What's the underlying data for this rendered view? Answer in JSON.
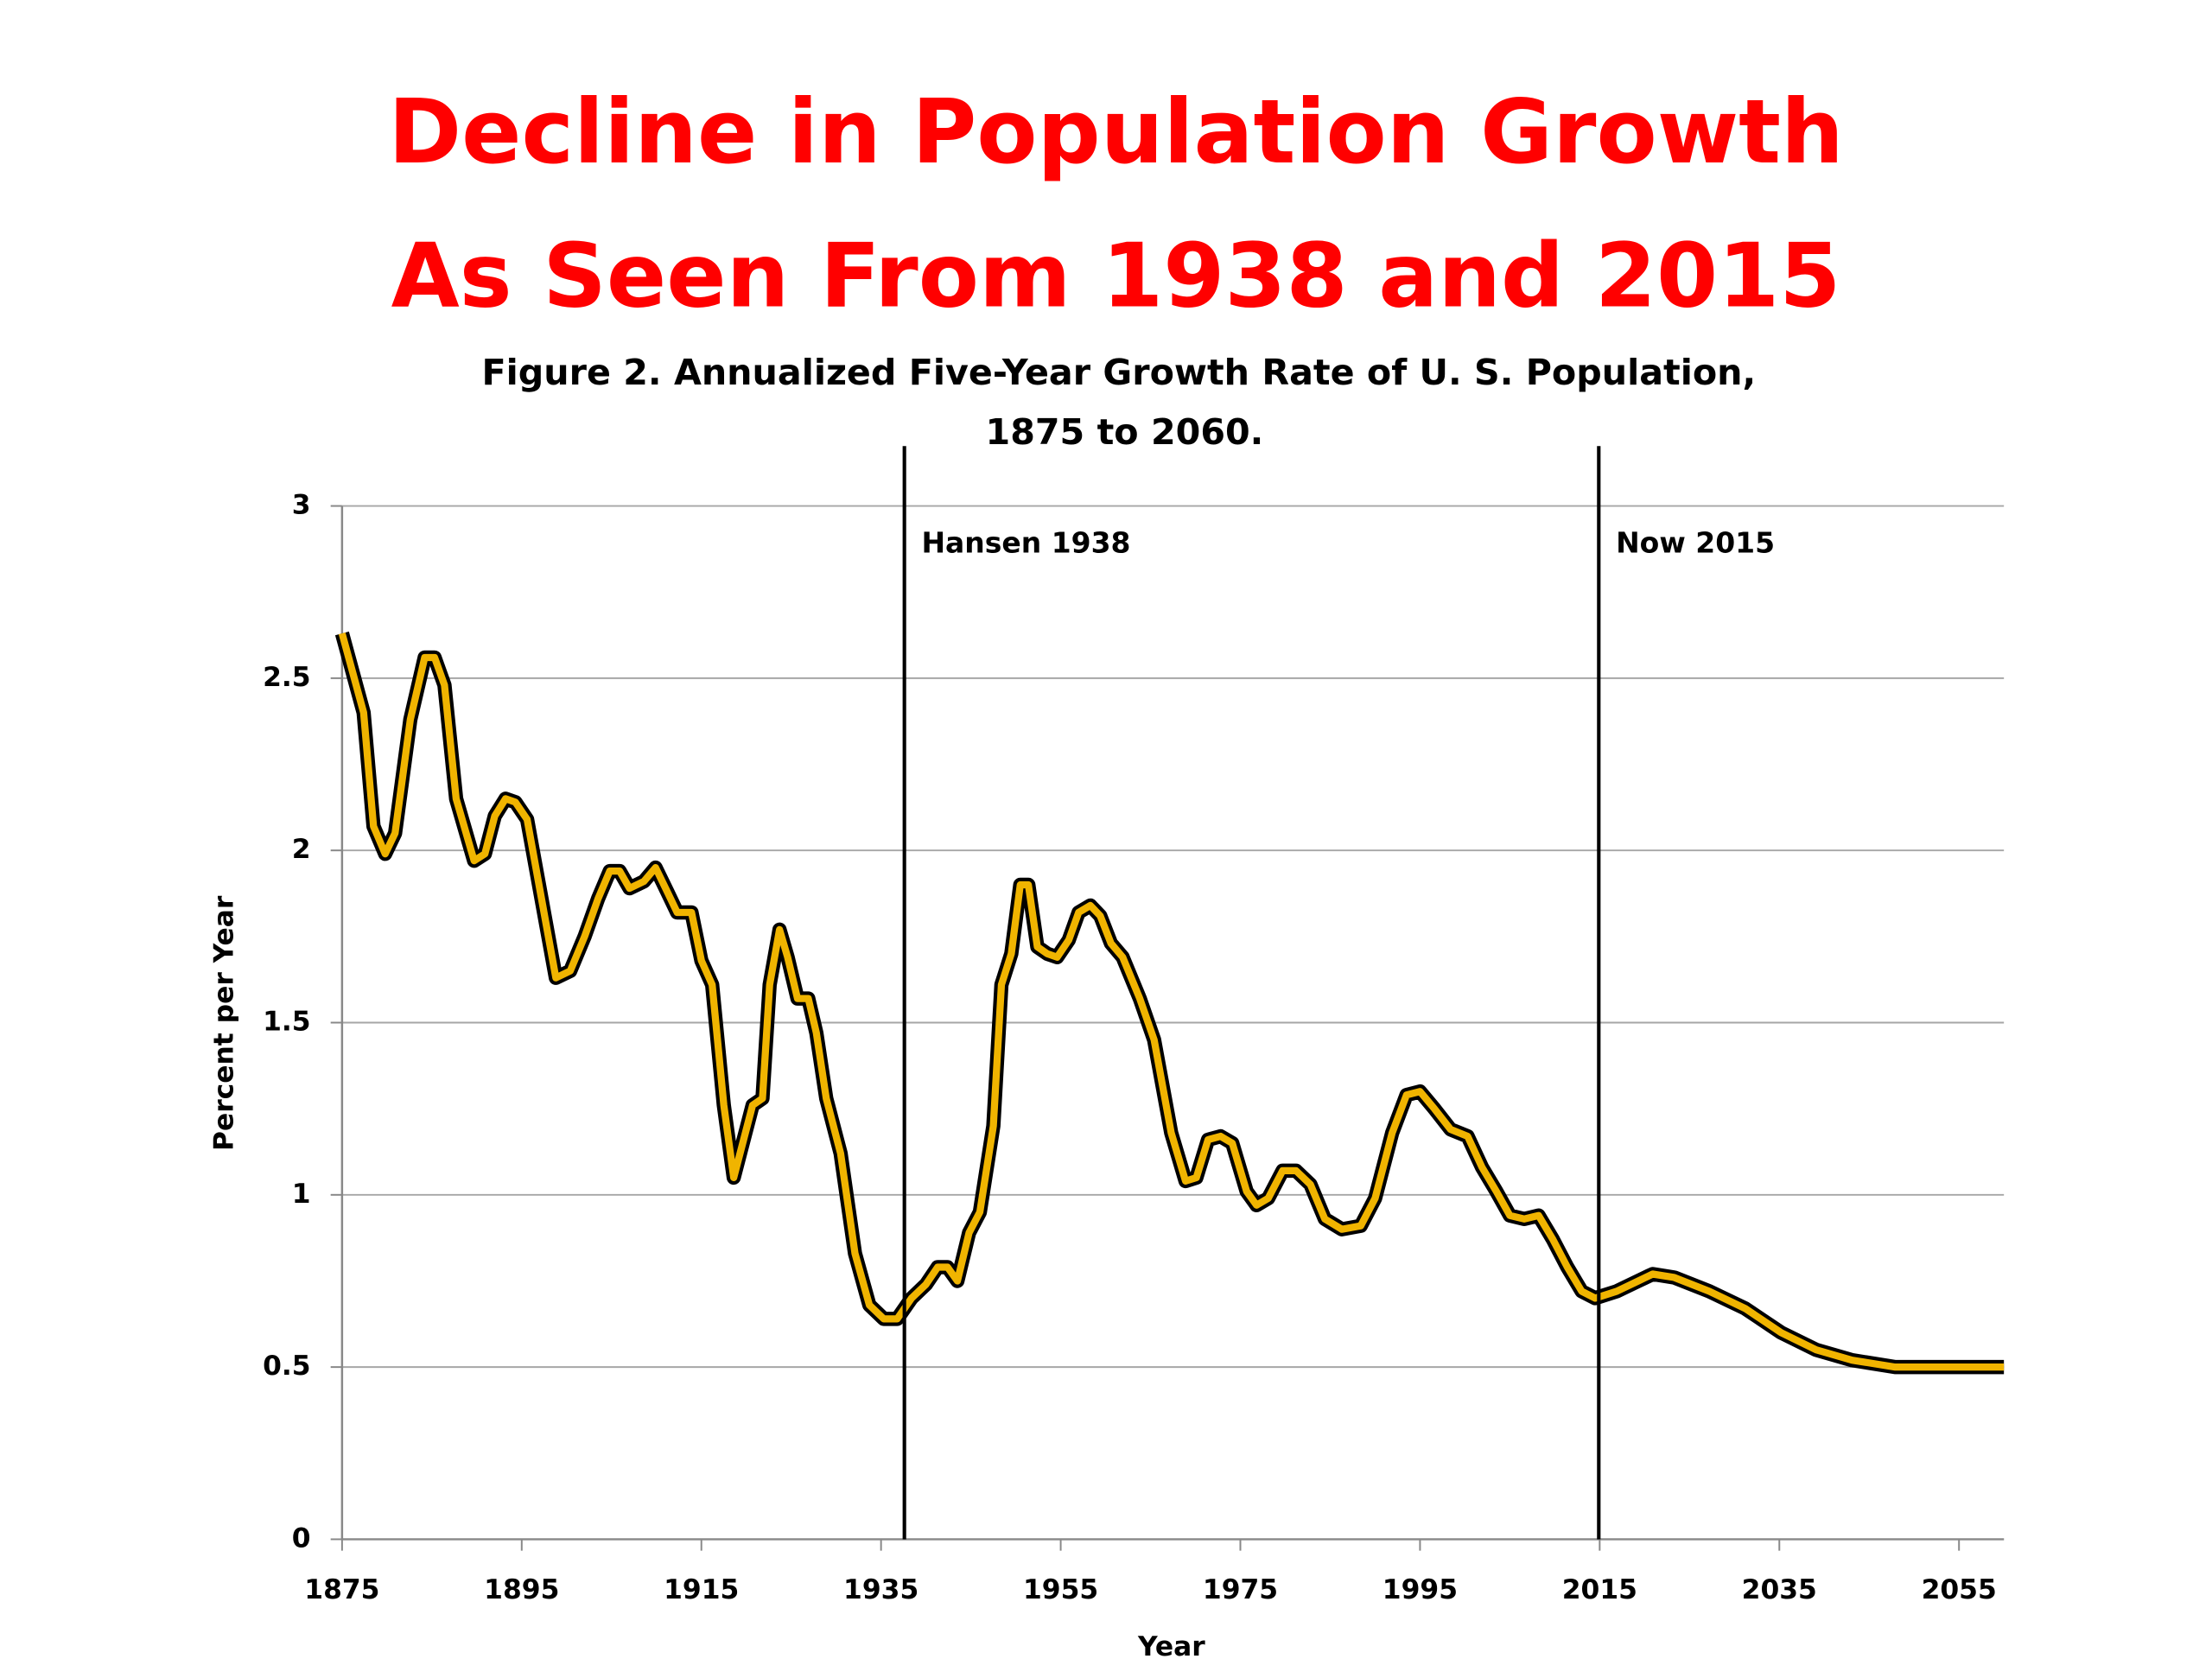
{
  "chart_data": {
    "type": "line",
    "title_lines": [
      "Decline in Population Growth",
      "As Seen From 1938 and 2015"
    ],
    "subtitle_lines": [
      "Figure 2. Annualized Five-Year Growth Rate of U. S. Population,",
      "1875 to 2060."
    ],
    "x_label": "Year",
    "y_label": "Percent per Year",
    "xlim": [
      1875,
      2060
    ],
    "xticks": [
      1875,
      1895,
      1915,
      1935,
      1955,
      1975,
      1995,
      2015,
      2035,
      2055
    ],
    "ylim": [
      0,
      3
    ],
    "yticks": [
      0,
      0.5,
      1,
      1.5,
      2,
      2.5,
      3
    ],
    "grid": true,
    "color": "#f0b400",
    "outline_color": "#000000",
    "x": [
      1875,
      1877.4,
      1878.5,
      1879.8,
      1880.9,
      1882.6,
      1884.2,
      1885.3,
      1886.4,
      1887.7,
      1889.7,
      1890.9,
      1892,
      1893.2,
      1894.3,
      1895.6,
      1897.2,
      1898.8,
      1900.4,
      1902,
      1903.5,
      1904.8,
      1905.9,
      1907,
      1908.6,
      1909.9,
      1911.2,
      1912.3,
      1913.9,
      1915,
      1916.2,
      1917.5,
      1918.6,
      1919.7,
      1920.7,
      1921.8,
      1922.6,
      1923.7,
      1924.6,
      1925.7,
      1926.9,
      1927.8,
      1928.9,
      1930.5,
      1932.1,
      1933.7,
      1935.3,
      1936.8,
      1938.4,
      1940,
      1941.3,
      1942.4,
      1943.5,
      1944.8,
      1946,
      1947.5,
      1948.4,
      1949.5,
      1950.5,
      1951.4,
      1952.4,
      1953.5,
      1954.6,
      1955.9,
      1957,
      1958.3,
      1959.4,
      1960.6,
      1961.9,
      1963.8,
      1965.4,
      1967.3,
      1968.9,
      1970.1,
      1971.4,
      1972.8,
      1974.1,
      1975.7,
      1976.8,
      1978.1,
      1979.7,
      1981.2,
      1982.8,
      1984.4,
      1986.3,
      1988.4,
      1990,
      1991.9,
      1993.5,
      1995,
      1996.6,
      1998.4,
      2000.3,
      2001.9,
      2003.5,
      2005,
      2006.6,
      2008.2,
      2009.8,
      2011.4,
      2013,
      2014.5,
      2016.9,
      2019.3,
      2020.9,
      2023.3,
      2027.2,
      2031.2,
      2035.2,
      2039.1,
      2043.1,
      2047.9,
      2060
    ],
    "values": [
      2.63,
      2.4,
      2.07,
      1.99,
      2.05,
      2.38,
      2.56,
      2.56,
      2.48,
      2.15,
      1.97,
      1.99,
      2.1,
      2.15,
      2.14,
      2.09,
      1.86,
      1.63,
      1.65,
      1.75,
      1.86,
      1.94,
      1.94,
      1.89,
      1.91,
      1.95,
      1.88,
      1.82,
      1.82,
      1.68,
      1.61,
      1.26,
      1.05,
      1.16,
      1.26,
      1.28,
      1.61,
      1.77,
      1.69,
      1.57,
      1.57,
      1.47,
      1.28,
      1.12,
      0.83,
      0.68,
      0.64,
      0.64,
      0.7,
      0.74,
      0.79,
      0.79,
      0.75,
      0.89,
      0.95,
      1.2,
      1.61,
      1.7,
      1.9,
      1.9,
      1.72,
      1.7,
      1.69,
      1.74,
      1.82,
      1.84,
      1.81,
      1.73,
      1.69,
      1.57,
      1.45,
      1.18,
      1.04,
      1.05,
      1.16,
      1.17,
      1.15,
      1.01,
      0.97,
      0.99,
      1.07,
      1.07,
      1.03,
      0.93,
      0.9,
      0.91,
      0.99,
      1.18,
      1.29,
      1.3,
      1.25,
      1.19,
      1.17,
      1.08,
      1.01,
      0.94,
      0.93,
      0.94,
      0.87,
      0.79,
      0.72,
      0.7,
      0.72,
      0.75,
      0.77,
      0.76,
      0.72,
      0.67,
      0.6,
      0.55,
      0.52,
      0.5,
      0.5
    ],
    "vlines": [
      {
        "x": 1937.6,
        "label": "Hansen 1938"
      },
      {
        "x": 2014.9,
        "label": "Now 2015"
      }
    ]
  }
}
